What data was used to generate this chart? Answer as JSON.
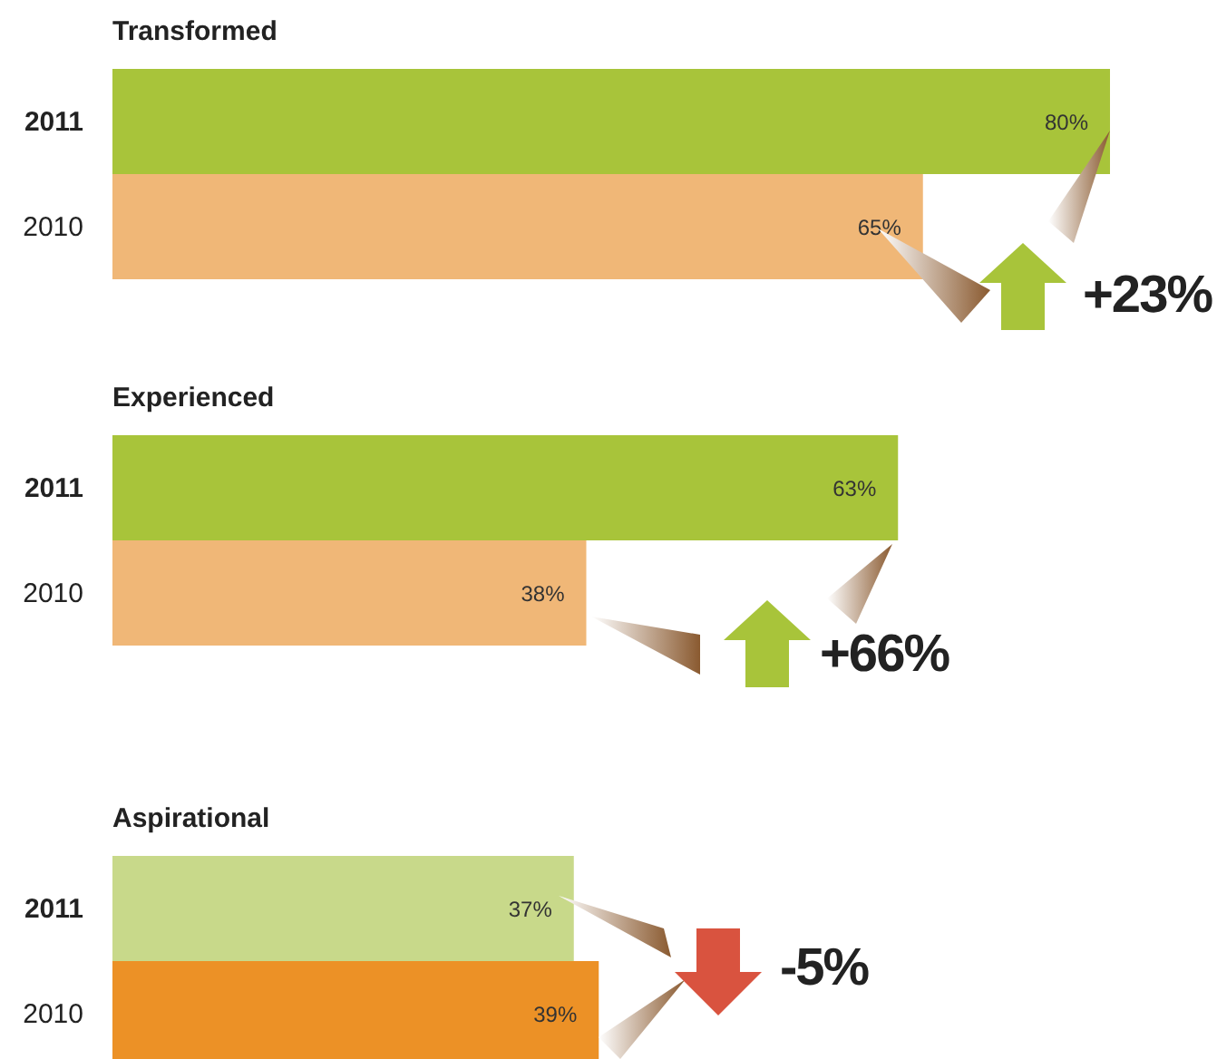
{
  "chart_data": [
    {
      "type": "bar",
      "orientation": "horizontal",
      "title": "Transformed",
      "categories": [
        "2011",
        "2010"
      ],
      "values": [
        80,
        65
      ],
      "colors": [
        "#a8c43a",
        "#f0b777"
      ],
      "value_labels": [
        "80%",
        "65%"
      ],
      "annotations": [
        "+23%"
      ]
    },
    {
      "type": "bar",
      "orientation": "horizontal",
      "title": "Experienced",
      "categories": [
        "2011",
        "2010"
      ],
      "values": [
        63,
        38
      ],
      "colors": [
        "#a8c43a",
        "#f0b777"
      ],
      "value_labels": [
        "63%",
        "38%"
      ],
      "annotations": [
        "+66%"
      ]
    },
    {
      "type": "bar",
      "orientation": "horizontal",
      "title": "Aspirational",
      "categories": [
        "2011",
        "2010"
      ],
      "values": [
        37,
        39
      ],
      "colors": [
        "#c8d98a",
        "#ec9126"
      ],
      "value_labels": [
        "37%",
        "39%"
      ],
      "annotations": [
        "-5%"
      ]
    }
  ]
}
